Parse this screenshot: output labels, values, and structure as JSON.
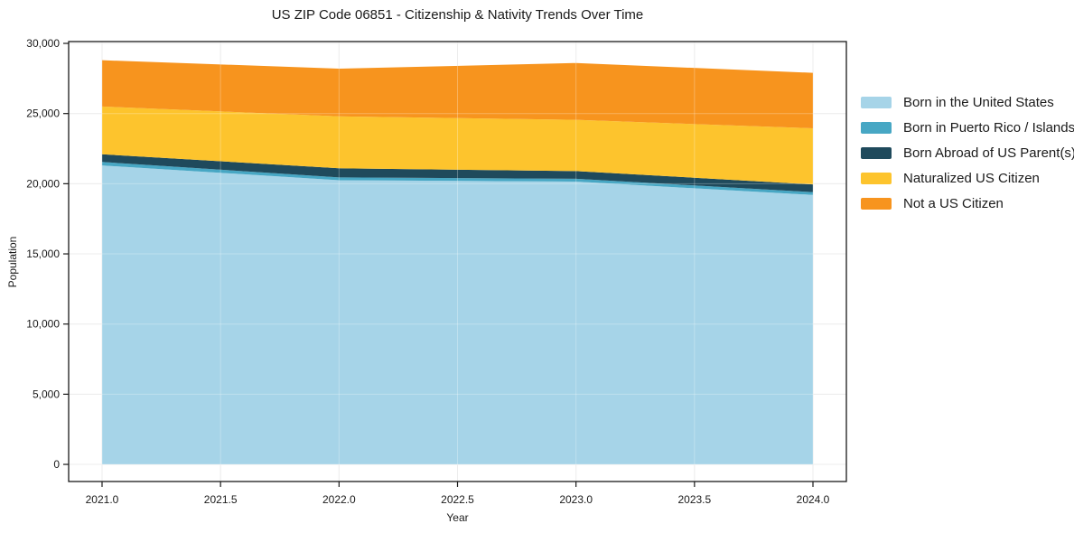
{
  "chart_data": {
    "type": "area",
    "stacked": true,
    "title": "US ZIP Code 06851 - Citizenship & Nativity Trends Over Time",
    "xlabel": "Year",
    "ylabel": "Population",
    "x": [
      2021,
      2022,
      2023,
      2024
    ],
    "series": [
      {
        "name": "Born in the United States",
        "color": "#a6d4e8",
        "values": [
          21300,
          20250,
          20150,
          19200
        ]
      },
      {
        "name": "Born in Puerto Rico / Islands",
        "color": "#47a7c4",
        "values": [
          250,
          200,
          200,
          200
        ]
      },
      {
        "name": "Born Abroad of US Parent(s)",
        "color": "#1f4a5c",
        "values": [
          550,
          650,
          550,
          550
        ]
      },
      {
        "name": "Naturalized US Citizen",
        "color": "#fdc42d",
        "values": [
          3400,
          3700,
          3650,
          4000
        ]
      },
      {
        "name": "Not a US Citizen",
        "color": "#f7941e",
        "values": [
          3300,
          3400,
          4050,
          3950
        ]
      }
    ],
    "xlim": [
      2020.859,
      2024.141
    ],
    "ylim": [
      -1220,
      30130
    ],
    "xticks": {
      "values": [
        2021,
        2021.5,
        2022,
        2022.5,
        2023,
        2023.5,
        2024
      ],
      "labels": [
        "2021.0",
        "2021.5",
        "2022.0",
        "2022.5",
        "2023.0",
        "2023.5",
        "2024.0"
      ]
    },
    "yticks": {
      "values": [
        0,
        5000,
        10000,
        15000,
        20000,
        25000,
        30000
      ],
      "labels": [
        "0",
        "5,000",
        "10,000",
        "15,000",
        "20,000",
        "25,000",
        "30,000"
      ]
    },
    "grid": true,
    "legend_position": "right"
  },
  "colors": {
    "background": "#ffffff",
    "axis": "#1a1a1a",
    "grid": "#e7e7e7",
    "grid_overlay": "rgba(255,255,255,0.28)",
    "text": "#1a1a1a"
  }
}
